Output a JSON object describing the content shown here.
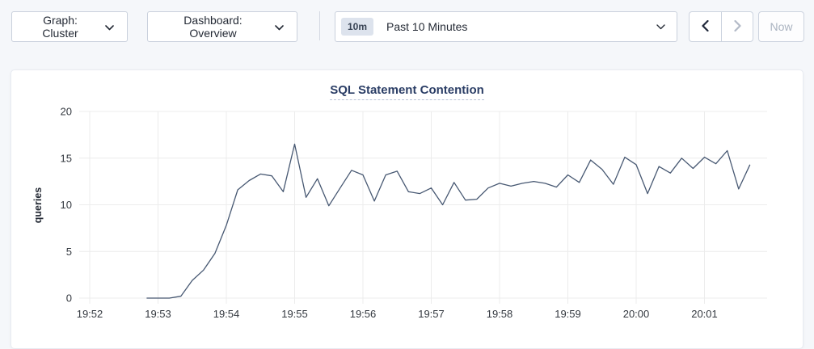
{
  "toolbar": {
    "graph_dropdown_label": "Graph: Cluster",
    "dashboard_dropdown_label": "Dashboard: Overview",
    "time_window": {
      "badge": "10m",
      "label": "Past 10 Minutes"
    },
    "now_button_label": "Now"
  },
  "chart_data": {
    "type": "line",
    "title": "SQL Statement Contention",
    "ylabel": "queries",
    "xlabel": "",
    "ylim": [
      0,
      20
    ],
    "yticks": [
      0,
      5,
      10,
      15,
      20
    ],
    "xticks": [
      "19:52",
      "19:53",
      "19:54",
      "19:55",
      "19:56",
      "19:57",
      "19:58",
      "19:59",
      "20:00",
      "20:01"
    ],
    "grid": true,
    "legend": "none",
    "grid_color": "#ececec",
    "axis_text_color": "#33383f",
    "series": [
      {
        "name": "queries",
        "color": "#475872",
        "start_time": "19:52:50",
        "interval_seconds": 10,
        "values": [
          0,
          0,
          0,
          0.2,
          1.9,
          3,
          4.8,
          7.8,
          11.6,
          12.6,
          13.3,
          13.1,
          11.4,
          16.5,
          10.8,
          12.8,
          9.9,
          11.8,
          13.7,
          13.2,
          10.4,
          13.2,
          13.6,
          11.4,
          11.2,
          11.8,
          10,
          12.4,
          10.5,
          10.6,
          11.8,
          12.3,
          12,
          12.3,
          12.5,
          12.3,
          11.9,
          13.2,
          12.4,
          14.8,
          13.8,
          12.2,
          15.1,
          14.3,
          11.2,
          14.1,
          13.4,
          15,
          13.9,
          15.1,
          14.4,
          15.8,
          11.7,
          14.3
        ]
      }
    ]
  },
  "colors": {
    "page_bg": "#f5f7fa",
    "panel_bg": "#ffffff",
    "control_border": "#c9d0dc",
    "text_dark": "#242a35",
    "disabled_text": "#aab3c0",
    "title_color": "#2b3e66",
    "badge_bg": "#dde3ed",
    "line_color": "#475872"
  }
}
